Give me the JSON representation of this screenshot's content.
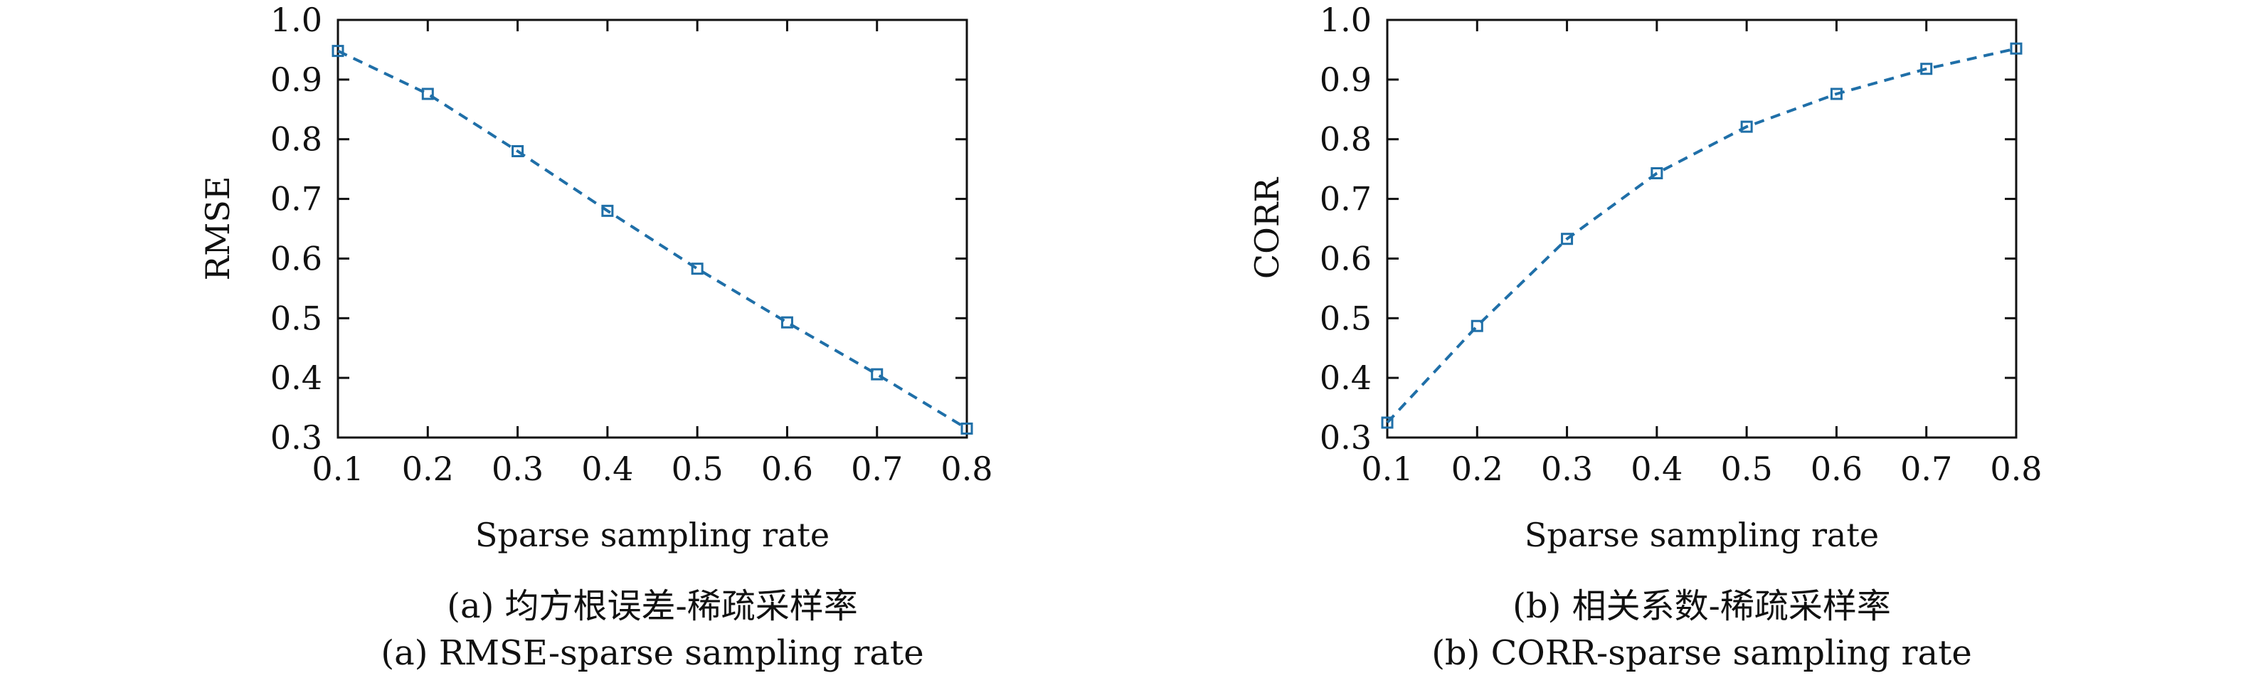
{
  "chart_data": [
    {
      "type": "line",
      "xlabel": "Sparse sampling rate",
      "ylabel": "RMSE",
      "xlim": [
        0.1,
        0.8
      ],
      "ylim": [
        0.3,
        1.0
      ],
      "xticks": [
        "0.1",
        "0.2",
        "0.3",
        "0.4",
        "0.5",
        "0.6",
        "0.7",
        "0.8"
      ],
      "yticks": [
        "0.3",
        "0.4",
        "0.5",
        "0.6",
        "0.7",
        "0.8",
        "0.9",
        "1.0"
      ],
      "grid": false,
      "line_style": "dashed",
      "marker": "square",
      "color": "#1f6fa8",
      "series": [
        {
          "x": [
            0.1,
            0.2,
            0.3,
            0.4,
            0.5,
            0.6,
            0.7,
            0.8
          ],
          "values": [
            0.948,
            0.876,
            0.78,
            0.68,
            0.583,
            0.493,
            0.406,
            0.315
          ]
        }
      ],
      "caption_zh": "(a) 均方根误差-稀疏采样率",
      "caption_en": "(a) RMSE-sparse sampling rate"
    },
    {
      "type": "line",
      "xlabel": "Sparse sampling rate",
      "ylabel": "CORR",
      "xlim": [
        0.1,
        0.8
      ],
      "ylim": [
        0.3,
        1.0
      ],
      "xticks": [
        "0.1",
        "0.2",
        "0.3",
        "0.4",
        "0.5",
        "0.6",
        "0.7",
        "0.8"
      ],
      "yticks": [
        "0.3",
        "0.4",
        "0.5",
        "0.6",
        "0.7",
        "0.8",
        "0.9",
        "1.0"
      ],
      "grid": false,
      "line_style": "dashed",
      "marker": "square",
      "color": "#1f6fa8",
      "series": [
        {
          "x": [
            0.1,
            0.2,
            0.3,
            0.4,
            0.5,
            0.6,
            0.7,
            0.8
          ],
          "values": [
            0.325,
            0.487,
            0.633,
            0.743,
            0.821,
            0.876,
            0.918,
            0.952
          ]
        }
      ],
      "caption_zh": "(b) 相关系数-稀疏采样率",
      "caption_en": "(b) CORR-sparse sampling rate"
    }
  ]
}
